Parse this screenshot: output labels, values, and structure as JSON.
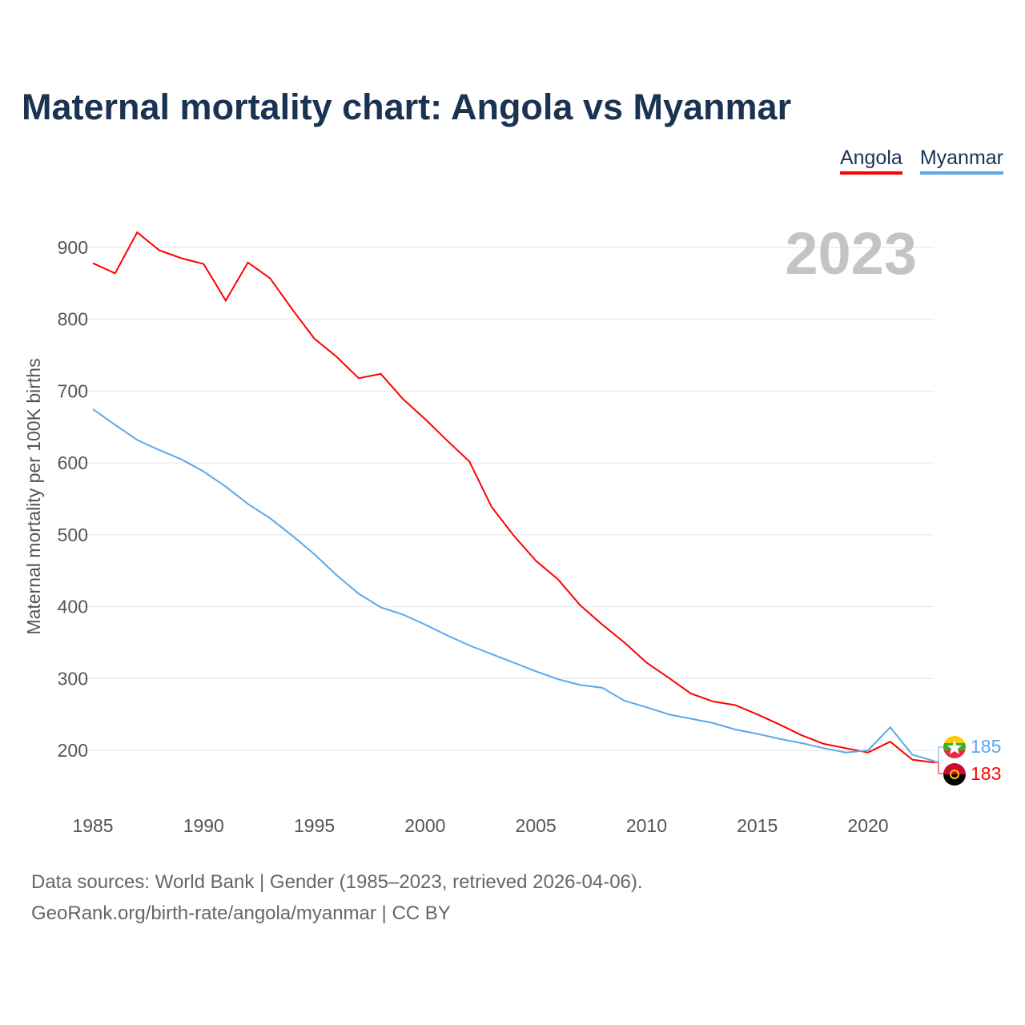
{
  "title": "Maternal mortality chart: Angola vs Myanmar",
  "legend": [
    {
      "label": "Angola",
      "color": "#ff0000"
    },
    {
      "label": "Myanmar",
      "color": "#5ba8ec"
    }
  ],
  "year_label": "2023",
  "source_line1": "Data sources: World Bank | Gender (1985–2023, retrieved 2026-04-06).",
  "source_line2": "GeoRank.org/birth-rate/angola/myanmar | CC BY",
  "chart_data": {
    "type": "line",
    "title": "Maternal mortality chart: Angola vs Myanmar",
    "xlabel": "",
    "ylabel": "Maternal mortality per 100K births",
    "xlim": [
      1985,
      2023
    ],
    "ylim": [
      150,
      920
    ],
    "xticks": [
      1985,
      1990,
      1995,
      2000,
      2005,
      2010,
      2015,
      2020
    ],
    "yticks": [
      200,
      300,
      400,
      500,
      600,
      700,
      800,
      900
    ],
    "grid": true,
    "legend_position": "top-right",
    "x": [
      1985,
      1986,
      1987,
      1988,
      1989,
      1990,
      1991,
      1992,
      1993,
      1994,
      1995,
      1996,
      1997,
      1998,
      1999,
      2000,
      2001,
      2002,
      2003,
      2004,
      2005,
      2006,
      2007,
      2008,
      2009,
      2010,
      2011,
      2012,
      2013,
      2014,
      2015,
      2016,
      2017,
      2018,
      2019,
      2020,
      2021,
      2022,
      2023
    ],
    "series": [
      {
        "name": "Angola",
        "color": "#ff0000",
        "end_label": "183",
        "values": [
          878,
          864,
          921,
          896,
          885,
          877,
          826,
          879,
          857,
          814,
          773,
          748,
          718,
          724,
          689,
          661,
          631,
          602,
          539,
          499,
          464,
          438,
          402,
          375,
          350,
          322,
          301,
          279,
          268,
          263,
          250,
          236,
          221,
          209,
          203,
          197,
          212,
          187,
          183
        ]
      },
      {
        "name": "Myanmar",
        "color": "#5ba8ec",
        "end_label": "185",
        "values": [
          675,
          653,
          632,
          618,
          605,
          588,
          567,
          543,
          523,
          499,
          473,
          444,
          418,
          399,
          389,
          375,
          360,
          346,
          334,
          322,
          310,
          299,
          291,
          287,
          269,
          260,
          250,
          244,
          238,
          229,
          223,
          216,
          210,
          203,
          197,
          200,
          232,
          194,
          185
        ]
      }
    ]
  }
}
